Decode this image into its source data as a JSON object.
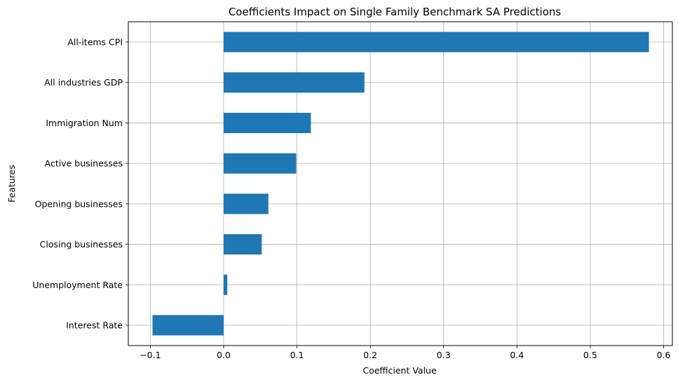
{
  "chart_data": {
    "type": "bar",
    "orientation": "horizontal",
    "title": "Coefficients Impact on Single Family Benchmark SA Predictions",
    "xlabel": "Coefficient Value",
    "ylabel": "Features",
    "categories": [
      "All-items CPI",
      "All industries GDP",
      "Immigration Num",
      "Active businesses",
      "Opening businesses",
      "Closing businesses",
      "Unemployment Rate",
      "Interest Rate"
    ],
    "values": [
      0.58,
      0.192,
      0.119,
      0.099,
      0.061,
      0.052,
      0.005,
      -0.097
    ],
    "xlim": [
      -0.13,
      0.612
    ],
    "xticks": [
      -0.1,
      0.0,
      0.1,
      0.2,
      0.3,
      0.4,
      0.5,
      0.6
    ],
    "xtick_labels": [
      "−0.1",
      "0.0",
      "0.1",
      "0.2",
      "0.3",
      "0.4",
      "0.5",
      "0.6"
    ],
    "grid": true,
    "bar_color": "#1f77b4",
    "grid_color": "#b0b0b0"
  }
}
